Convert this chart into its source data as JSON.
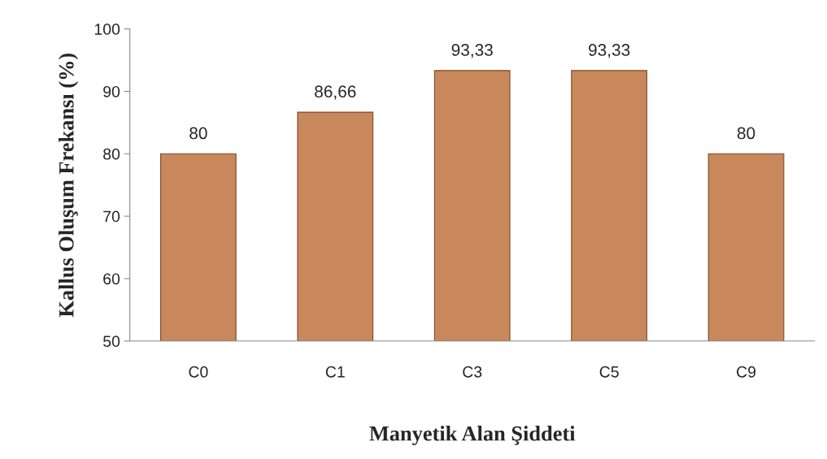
{
  "chart_data": {
    "type": "bar",
    "xlabel": "Manyetik Alan Şiddeti",
    "ylabel": "Kallus Oluşum Frekansı (%)",
    "categories": [
      "C0",
      "C1",
      "C3",
      "C5",
      "C9"
    ],
    "values": [
      80,
      86.66,
      93.33,
      93.33,
      80
    ],
    "value_labels": [
      "80",
      "86,66",
      "93,33",
      "93,33",
      "80"
    ],
    "color": "#c9875c",
    "ylim": [
      50,
      100
    ],
    "yticks": [
      50,
      60,
      70,
      80,
      90,
      100
    ],
    "grid": false,
    "legend": false
  }
}
